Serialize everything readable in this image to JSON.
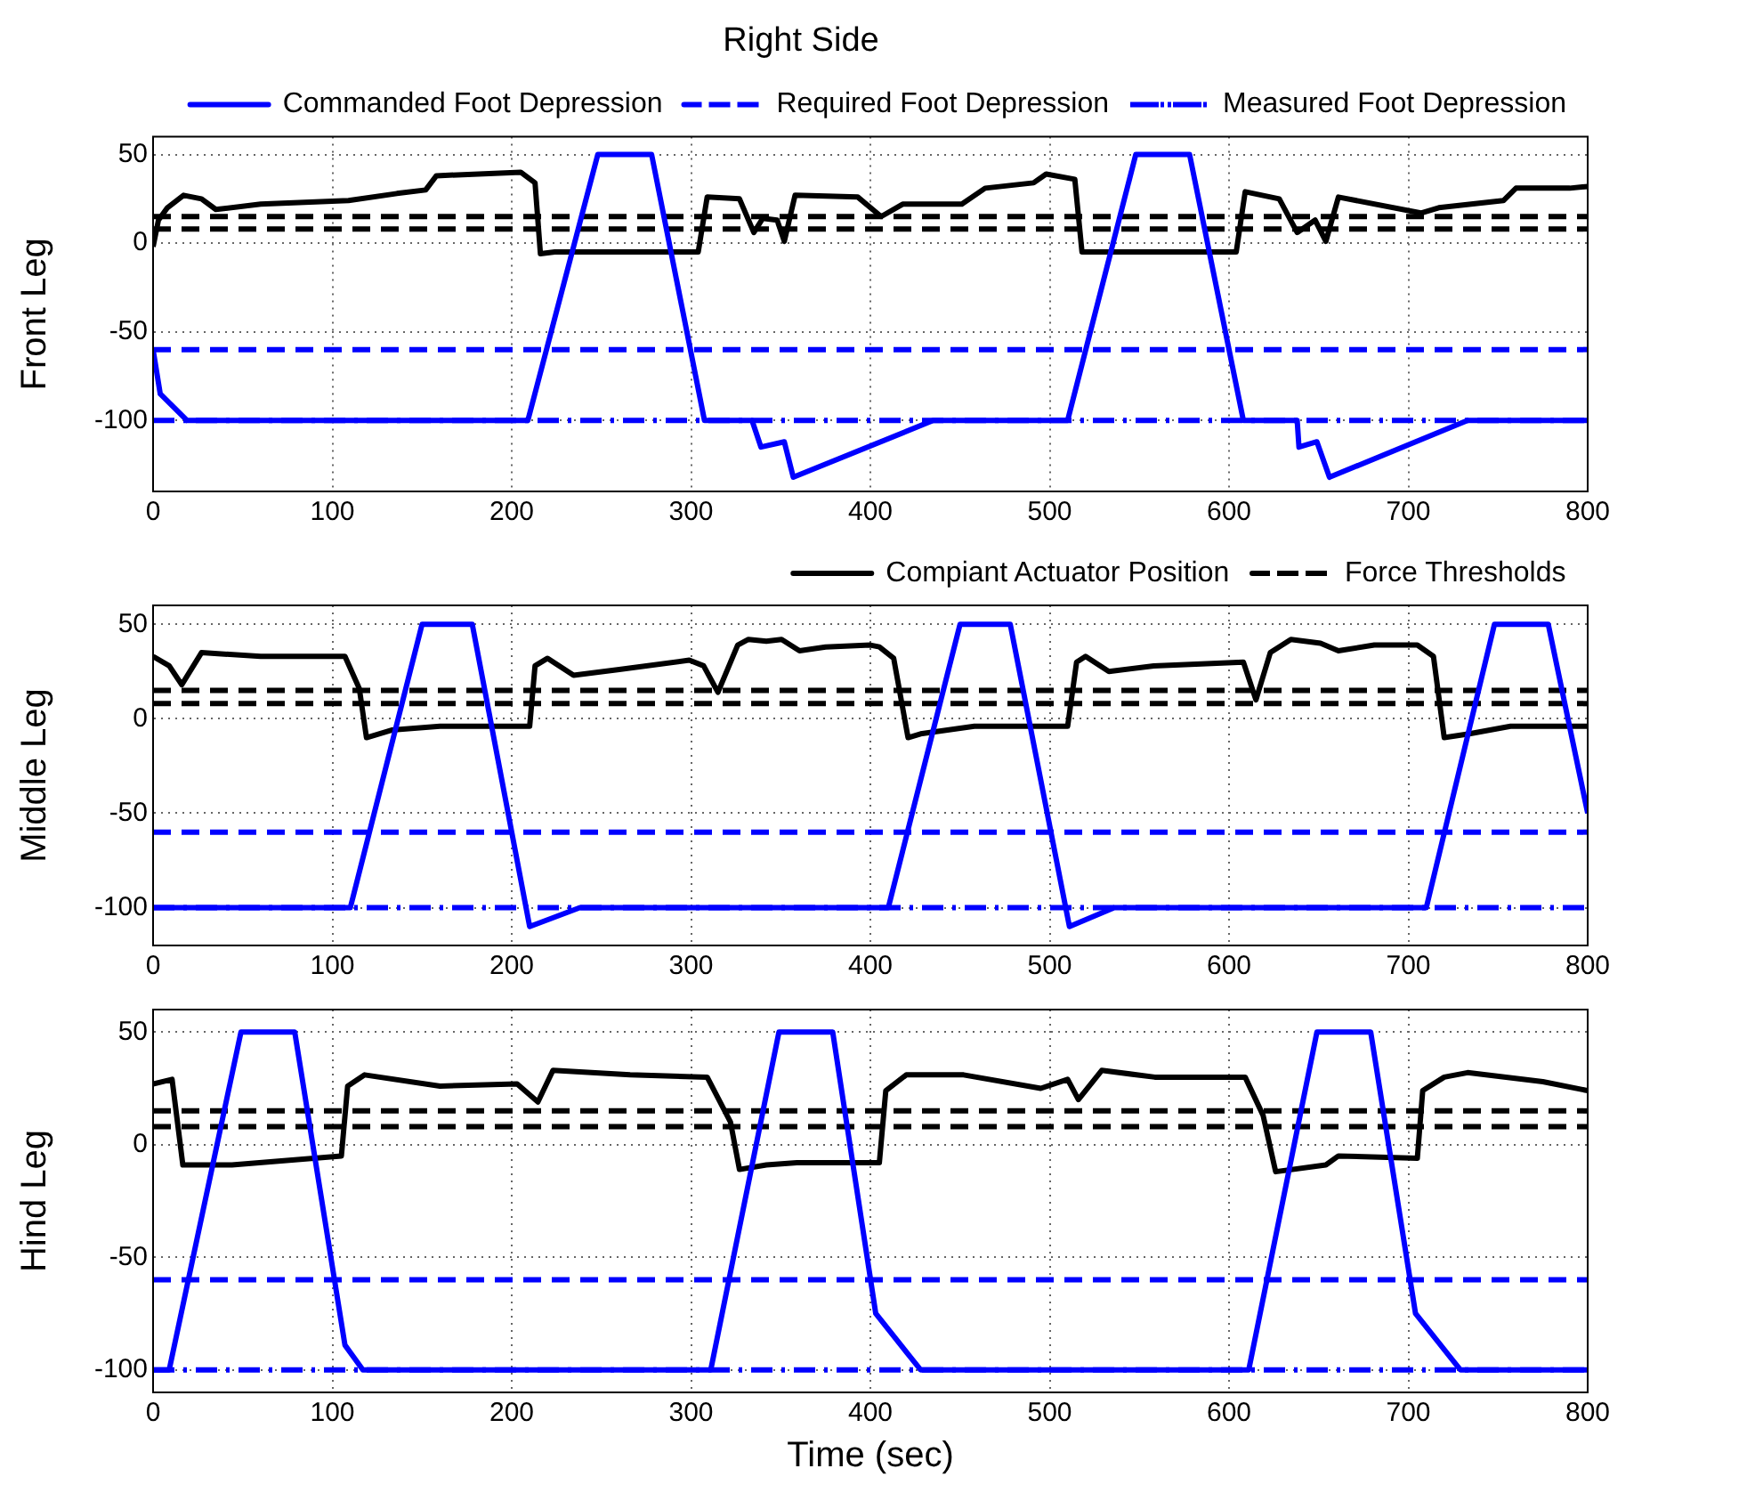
{
  "chart_data": [
    {
      "type": "line",
      "title": "Right Side",
      "ylabel": "Front Leg",
      "xlim": [
        0,
        800
      ],
      "xticks": [
        0,
        100,
        200,
        300,
        400,
        500,
        600,
        700,
        800
      ],
      "ylim": [
        -140,
        60
      ],
      "yticks": [
        -100,
        -50,
        0,
        50
      ],
      "grid": true,
      "legend": "top right",
      "series": [
        {
          "name": "Commanded Foot Depression",
          "color": "#0000ff",
          "line_style": "solid",
          "x": [
            0,
            4,
            19,
            209,
            248,
            278,
            307.5,
            334,
            339,
            352,
            357,
            435,
            510,
            548,
            578,
            608,
            638,
            639,
            649,
            656,
            733,
            800
          ],
          "values": [
            -60,
            -85,
            -100,
            -100,
            50,
            50,
            -100,
            -100,
            -115,
            -112,
            -132,
            -100,
            -100,
            50,
            50,
            -100,
            -100,
            -115,
            -112,
            -132,
            -100,
            -100
          ]
        },
        {
          "name": "Required Foot Depression",
          "color": "#0000ff",
          "line_style": "dashed",
          "x": [
            0,
            800
          ],
          "values": [
            -60,
            -60
          ]
        },
        {
          "name": "Measured Foot Depression",
          "color": "#0000ff",
          "line_style": "dashdot",
          "x": [
            0,
            800
          ],
          "values": [
            -100,
            -100
          ]
        },
        {
          "color": "#000000",
          "line_style": "solid",
          "x": [
            0,
            3,
            8,
            17,
            27,
            35,
            60,
            109,
            136,
            152,
            158,
            205,
            213,
            216,
            224,
            304,
            309,
            327,
            335,
            340,
            348,
            352,
            358,
            393,
            406,
            418,
            451,
            464,
            491,
            498,
            514,
            518,
            604,
            609,
            628,
            638,
            648,
            654,
            661,
            707,
            717,
            753,
            760,
            790,
            800
          ],
          "values": [
            -2,
            13,
            20,
            27,
            25,
            19,
            22,
            24,
            28,
            30,
            38,
            40,
            34,
            -6,
            -5,
            -5,
            26,
            25,
            6,
            14,
            13,
            1,
            27,
            26,
            15,
            22,
            22,
            31,
            34,
            39,
            36,
            -5,
            -5,
            29,
            25,
            6,
            13,
            1,
            26,
            17,
            20,
            24,
            31,
            31,
            32
          ]
        },
        {
          "color": "#000000",
          "line_style": "dashed",
          "x": [
            0,
            800
          ],
          "values": [
            15,
            15
          ]
        },
        {
          "color": "#000000",
          "line_style": "dashed",
          "x": [
            0,
            800
          ],
          "values": [
            8,
            8
          ]
        }
      ]
    },
    {
      "type": "line",
      "ylabel": "Middle Leg",
      "xlim": [
        0,
        800
      ],
      "xticks": [
        0,
        100,
        200,
        300,
        400,
        500,
        600,
        700,
        800
      ],
      "ylim": [
        -120,
        60
      ],
      "yticks": [
        -100,
        -50,
        0,
        50
      ],
      "grid": true,
      "legend": "top right",
      "series": [
        {
          "color": "#0000ff",
          "line_style": "solid",
          "x": [
            0,
            110,
            150,
            178,
            210,
            238,
            410,
            450,
            478,
            511,
            536,
            710,
            748,
            778,
            800
          ],
          "values": [
            -100,
            -100,
            50,
            50,
            -110,
            -100,
            -100,
            50,
            50,
            -110,
            -100,
            -100,
            50,
            50,
            -50
          ]
        },
        {
          "color": "#0000ff",
          "line_style": "dashed",
          "x": [
            0,
            800
          ],
          "values": [
            -60,
            -60
          ]
        },
        {
          "color": "#0000ff",
          "line_style": "dashdot",
          "x": [
            0,
            800
          ],
          "values": [
            -100,
            -100
          ]
        },
        {
          "name": "Compiant Actuator Position",
          "color": "#000000",
          "line_style": "solid",
          "x": [
            0,
            9,
            16,
            27,
            60,
            107,
            115,
            119,
            133,
            160,
            210,
            213,
            220,
            234.5,
            259,
            299,
            307,
            315,
            326,
            332,
            342,
            350.5,
            360.5,
            375,
            400,
            405,
            413,
            421,
            428,
            458,
            510,
            515,
            520,
            533,
            558,
            608,
            615,
            623,
            634.5,
            651,
            661,
            681,
            705,
            714,
            720,
            734,
            757,
            800
          ],
          "values": [
            33,
            28,
            18,
            35,
            33,
            33,
            16,
            -10,
            -6,
            -4,
            -4,
            28,
            32,
            23,
            26,
            31,
            28,
            14,
            39,
            42,
            41,
            42,
            36,
            38,
            39,
            38,
            32,
            -10,
            -8,
            -4,
            -4,
            30,
            33,
            25,
            28,
            30,
            10,
            35,
            42,
            40,
            36,
            39,
            39,
            33,
            -10,
            -8,
            -4,
            -4
          ]
        },
        {
          "name": "Force Thresholds",
          "color": "#000000",
          "line_style": "dashed",
          "x": [
            0,
            800
          ],
          "values": [
            15,
            15
          ]
        },
        {
          "color": "#000000",
          "line_style": "dashed",
          "x": [
            0,
            800
          ],
          "values": [
            8,
            8
          ]
        }
      ]
    },
    {
      "type": "line",
      "xlabel": "Time (sec)",
      "ylabel": "Hind Leg",
      "xlim": [
        0,
        800
      ],
      "xticks": [
        0,
        100,
        200,
        300,
        400,
        500,
        600,
        700,
        800
      ],
      "ylim": [
        -110,
        60
      ],
      "yticks": [
        -100,
        -50,
        0,
        50
      ],
      "grid": true,
      "series": [
        {
          "color": "#0000ff",
          "line_style": "solid",
          "x": [
            0,
            9,
            49,
            79,
            107,
            117,
            311,
            349,
            379,
            403,
            428,
            611,
            649,
            679,
            704,
            729,
            800
          ],
          "values": [
            -100,
            -100,
            50,
            50,
            -89,
            -100,
            -100,
            50,
            50,
            -75,
            -100,
            -100,
            50,
            50,
            -75,
            -100,
            -100
          ]
        },
        {
          "color": "#0000ff",
          "line_style": "dashed",
          "x": [
            0,
            800
          ],
          "values": [
            -60,
            -60
          ]
        },
        {
          "color": "#0000ff",
          "line_style": "dashdot",
          "x": [
            0,
            800
          ],
          "values": [
            -100,
            -100
          ]
        },
        {
          "color": "#000000",
          "line_style": "solid",
          "x": [
            0,
            10.6,
            16.6,
            44,
            105,
            108.5,
            118,
            160,
            203,
            214.6,
            223,
            266,
            309,
            322,
            327,
            342,
            359,
            403.6,
            405,
            408.6,
            420,
            452,
            495,
            510,
            516,
            529,
            558.6,
            609,
            619,
            626,
            654,
            661,
            705,
            708,
            720,
            733,
            775,
            800
          ],
          "values": [
            27,
            29,
            -9,
            -9,
            -5,
            26,
            31,
            26,
            27,
            19,
            33,
            31,
            30,
            10,
            -11,
            -9,
            -8,
            -8,
            -8,
            24,
            31,
            31,
            25,
            29,
            20,
            33,
            30,
            30,
            13,
            -12,
            -9,
            -5,
            -6,
            24,
            30,
            32,
            28,
            24
          ]
        },
        {
          "color": "#000000",
          "line_style": "dashed",
          "x": [
            0,
            800
          ],
          "values": [
            15,
            15
          ]
        },
        {
          "color": "#000000",
          "line_style": "dashed",
          "x": [
            0,
            800
          ],
          "values": [
            8,
            8
          ]
        }
      ]
    }
  ]
}
